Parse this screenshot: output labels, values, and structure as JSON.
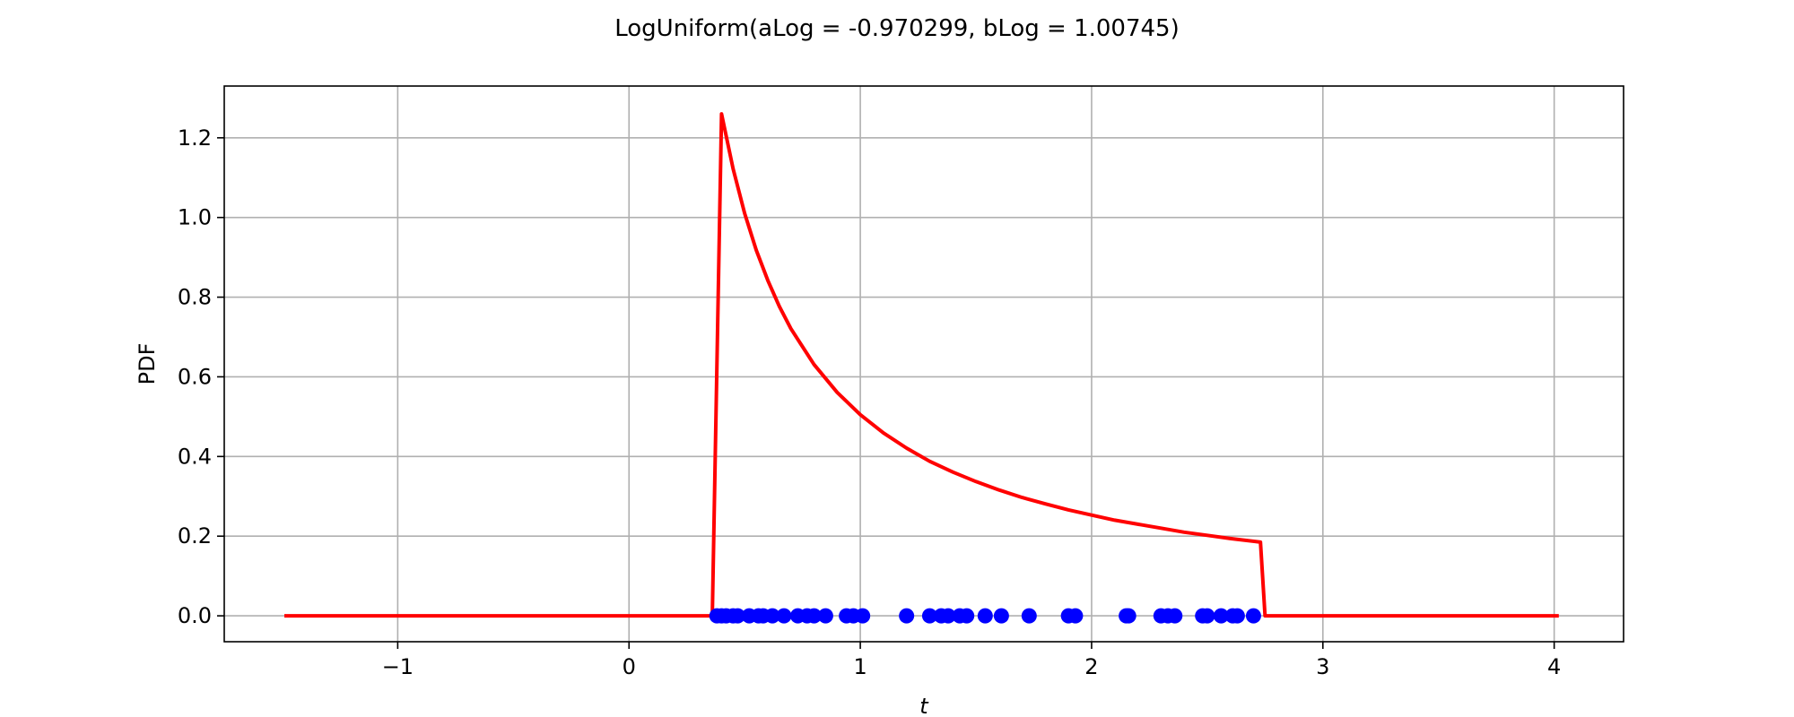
{
  "chart_data": {
    "type": "line",
    "title": "LogUniform(aLog = -0.970299, bLog = 1.00745)",
    "xlabel": "t",
    "ylabel": "PDF",
    "xlim": [
      -1.75,
      4.3
    ],
    "ylim": [
      -0.065,
      1.33
    ],
    "xticks": [
      -1,
      0,
      1,
      2,
      3,
      4
    ],
    "xtick_labels": [
      "−1",
      "0",
      "1",
      "2",
      "3",
      "4"
    ],
    "yticks": [
      0.0,
      0.2,
      0.4,
      0.6,
      0.8,
      1.0,
      1.2
    ],
    "ytick_labels": [
      "0.0",
      "0.2",
      "0.4",
      "0.6",
      "0.8",
      "1.0",
      "1.2"
    ],
    "grid": true,
    "series": [
      {
        "kind": "line",
        "color": "#ff0000",
        "x": [
          -1.49,
          0.36,
          0.4,
          0.45,
          0.5,
          0.55,
          0.6,
          0.65,
          0.7,
          0.8,
          0.9,
          1.0,
          1.1,
          1.2,
          1.3,
          1.4,
          1.5,
          1.6,
          1.7,
          1.8,
          1.9,
          2.0,
          2.1,
          2.2,
          2.3,
          2.4,
          2.5,
          2.6,
          2.73,
          2.75,
          4.02
        ],
        "y": [
          0.0,
          0.0,
          1.26,
          1.122,
          1.01,
          0.918,
          0.842,
          0.777,
          0.721,
          0.631,
          0.561,
          0.505,
          0.459,
          0.421,
          0.388,
          0.361,
          0.337,
          0.316,
          0.297,
          0.281,
          0.266,
          0.253,
          0.24,
          0.23,
          0.22,
          0.21,
          0.202,
          0.194,
          0.185,
          0.0,
          0.0
        ]
      },
      {
        "kind": "scatter",
        "color": "#0000ff",
        "x": [
          0.38,
          0.4,
          0.42,
          0.45,
          0.47,
          0.52,
          0.56,
          0.58,
          0.62,
          0.67,
          0.73,
          0.77,
          0.8,
          0.85,
          0.94,
          0.97,
          1.01,
          1.2,
          1.3,
          1.35,
          1.38,
          1.43,
          1.46,
          1.54,
          1.61,
          1.73,
          1.9,
          1.93,
          2.15,
          2.16,
          2.3,
          2.33,
          2.36,
          2.48,
          2.5,
          2.56,
          2.61,
          2.63,
          2.7
        ],
        "y": [
          0,
          0,
          0,
          0,
          0,
          0,
          0,
          0,
          0,
          0,
          0,
          0,
          0,
          0,
          0,
          0,
          0,
          0,
          0,
          0,
          0,
          0,
          0,
          0,
          0,
          0,
          0,
          0,
          0,
          0,
          0,
          0,
          0,
          0,
          0,
          0,
          0,
          0,
          0
        ]
      }
    ]
  }
}
